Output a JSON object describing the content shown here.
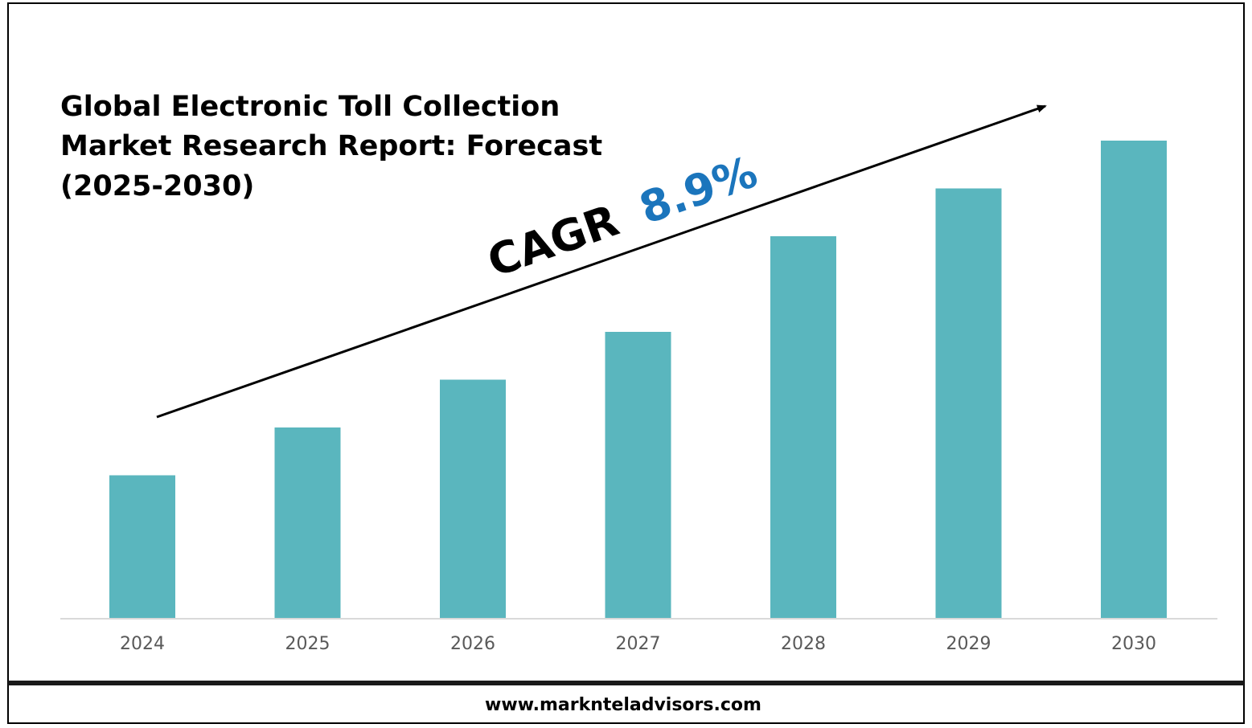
{
  "title_lines": [
    "Global Electronic Toll Collection",
    "Market Research Report: Forecast",
    "(2025-2030)"
  ],
  "cagr": {
    "label": "CAGR",
    "value": "8.9%",
    "value_color": "#1b75bc"
  },
  "footer": {
    "url": "www.marknteladvisors.com"
  },
  "colors": {
    "bar": "#5ab6be",
    "axis": "#d9d9d9",
    "tick_text": "#595959",
    "frame": "#000000"
  },
  "chart_data": {
    "type": "bar",
    "categories": [
      "2024",
      "2025",
      "2026",
      "2027",
      "2028",
      "2029",
      "2030"
    ],
    "values": [
      30,
      40,
      50,
      60,
      80,
      90,
      100
    ],
    "ylim": [
      0,
      100
    ],
    "value_units": "relative bar height (no values printed)",
    "grid": false,
    "legend": "none",
    "annotation": "CAGR 8.9%"
  }
}
